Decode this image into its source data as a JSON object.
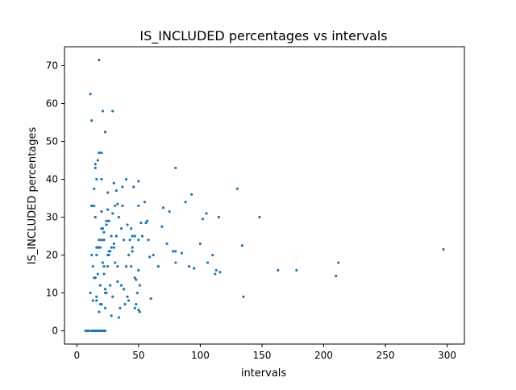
{
  "colors": {
    "point": "#1f77b4",
    "axis": "#000000",
    "background": "#ffffff"
  },
  "chart_data": {
    "type": "scatter",
    "title": "IS_INCLUDED percentages vs intervals",
    "xlabel": "intervals",
    "ylabel": "IS_INCLUDED percentages",
    "xlim": [
      -10,
      314
    ],
    "ylim": [
      -3.5,
      75
    ],
    "xticks": [
      0,
      50,
      100,
      150,
      200,
      250,
      300
    ],
    "yticks": [
      0,
      10,
      20,
      30,
      40,
      50,
      60,
      70
    ],
    "grid": false,
    "legend": "none",
    "series": [
      {
        "x": [
          7,
          8,
          9,
          10,
          12,
          13,
          14,
          15,
          16,
          17,
          18,
          19,
          20,
          21,
          22,
          23,
          11,
          12,
          13,
          15,
          16,
          17,
          18,
          19,
          20,
          21,
          22,
          23,
          24,
          25,
          26,
          27,
          28,
          29,
          30,
          31,
          32,
          33,
          34,
          35,
          36,
          38,
          40,
          41,
          42,
          44,
          45,
          47,
          49,
          50,
          51,
          53,
          18,
          11,
          21,
          29,
          23,
          18,
          20,
          17,
          15,
          15,
          16,
          12,
          40,
          50,
          80,
          93,
          130,
          55,
          57,
          46,
          50,
          33,
          12,
          20,
          25,
          88,
          105,
          110,
          115,
          148,
          60,
          75,
          70,
          66,
          50,
          37,
          30,
          20,
          14,
          100,
          102,
          112,
          116,
          135,
          163,
          178,
          210,
          212,
          297,
          50,
          45,
          48,
          43,
          80,
          91,
          106,
          134,
          113,
          95,
          85,
          80,
          39,
          34,
          28,
          23,
          19,
          16,
          13,
          22,
          26,
          29,
          31,
          32,
          45,
          47,
          51,
          41,
          44,
          42,
          36,
          37,
          38,
          26,
          25,
          24,
          28,
          30,
          32,
          33,
          22,
          23,
          20,
          19,
          17,
          18,
          16,
          15,
          14,
          12,
          21,
          22,
          24,
          25,
          27,
          20,
          18,
          16,
          14,
          52,
          56,
          58,
          62,
          69,
          73,
          78,
          59,
          48,
          47
        ],
        "y": [
          0,
          0,
          0,
          0,
          0,
          0,
          0,
          0,
          0,
          0,
          0,
          0,
          0,
          0,
          0,
          0,
          10,
          20,
          8,
          30,
          8,
          15,
          5,
          12,
          7,
          18,
          15,
          6,
          10,
          17,
          21,
          12,
          22,
          9,
          23,
          18,
          25,
          13,
          30,
          6,
          12,
          11,
          17,
          9,
          20,
          17,
          21,
          25,
          10,
          16,
          12,
          25,
          71.5,
          62.5,
          58,
          58,
          52.5,
          47,
          47,
          45,
          43,
          44,
          40,
          33,
          40,
          39.5,
          43,
          36,
          37.5,
          34,
          29,
          38,
          33,
          33.5,
          55.5,
          31.5,
          36.5,
          34,
          31,
          20,
          30,
          30,
          8.5,
          31.5,
          32.5,
          17,
          24,
          38,
          39,
          40,
          37.5,
          23,
          29.5,
          15,
          15.5,
          9,
          16,
          16,
          14.5,
          18,
          21.5,
          5.5,
          22,
          7,
          24,
          21,
          17,
          18,
          22.5,
          16,
          16.5,
          20.5,
          18,
          7,
          3.5,
          4,
          10,
          7,
          9,
          17,
          26,
          29,
          31,
          33,
          37,
          25,
          14,
          5,
          28,
          27,
          8,
          27,
          33,
          24,
          20,
          32,
          28,
          25,
          22,
          25,
          17,
          24,
          11,
          27,
          22,
          22,
          22,
          22,
          14,
          33,
          33,
          27,
          17,
          29,
          20,
          21,
          24,
          24,
          20,
          14,
          28.5,
          28.5,
          24,
          20,
          27.5,
          23,
          21,
          19.5,
          13.5,
          6
        ]
      }
    ]
  }
}
